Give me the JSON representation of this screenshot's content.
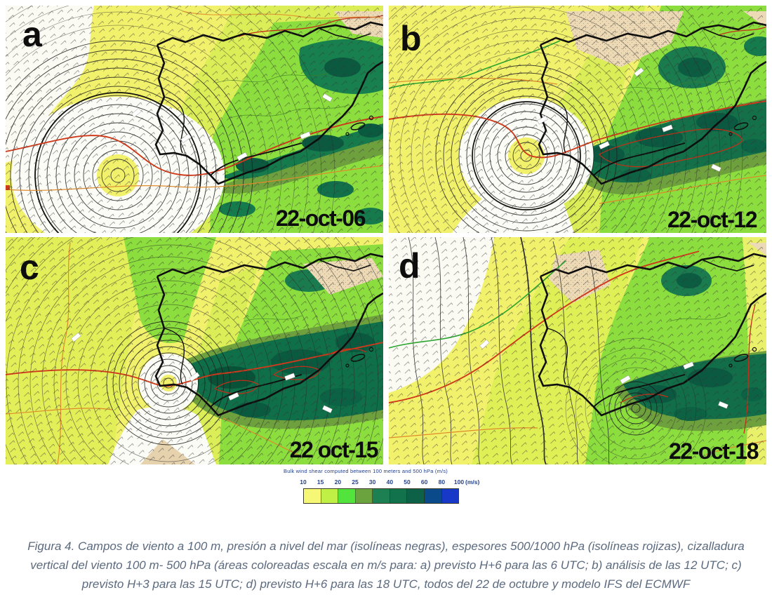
{
  "figure": {
    "panels": [
      {
        "label": "a",
        "timestamp": "22-oct-06"
      },
      {
        "label": "b",
        "timestamp": "22-oct-12"
      },
      {
        "label": "c",
        "timestamp": "22 oct-15"
      },
      {
        "label": "d",
        "timestamp": "22-oct-18"
      }
    ],
    "legend": {
      "title": "Bulk wind shear computed between 100 meters and 500 hPa (m/s)",
      "ticks": [
        "10",
        "15",
        "20",
        "25",
        "30",
        "40",
        "50",
        "60",
        "80",
        "100"
      ],
      "unit": "(m/s)",
      "colors": [
        "#f6f774",
        "#c0ef45",
        "#52e43c",
        "#6ba33f",
        "#1c8052",
        "#12724b",
        "#0d6147",
        "#0b4a8a",
        "#1838c8"
      ],
      "tick_color": "#25418f"
    },
    "caption": "Figura 4. Campos de viento a 100 m, presión a nivel del mar (isolíneas negras), espesores 500/1000 hPa (isolíneas rojizas), cizalladura vertical del viento 100 m- 500 hPa (áreas coloreadas escala en m/s para: a) previsto H+6 para las 6 UTC; b) análisis de las 12 UTC; c) previsto H+3 para las 15 UTC; d)  previsto H+6 para las 18 UTC, todos del 22 de octubre y modelo IFS del ECMWF",
    "caption_color": "#5b6a7e",
    "map_colors": {
      "low_shear_white": "#fcfcf6",
      "base_yellow": "#f2f16c",
      "high_shear_dark_green": "#0a5a40",
      "thickness_contour_red": "#cf3a1b",
      "pressure_contour_black": "#1d1d1d",
      "dry_tan": "#ecd9b6"
    }
  }
}
